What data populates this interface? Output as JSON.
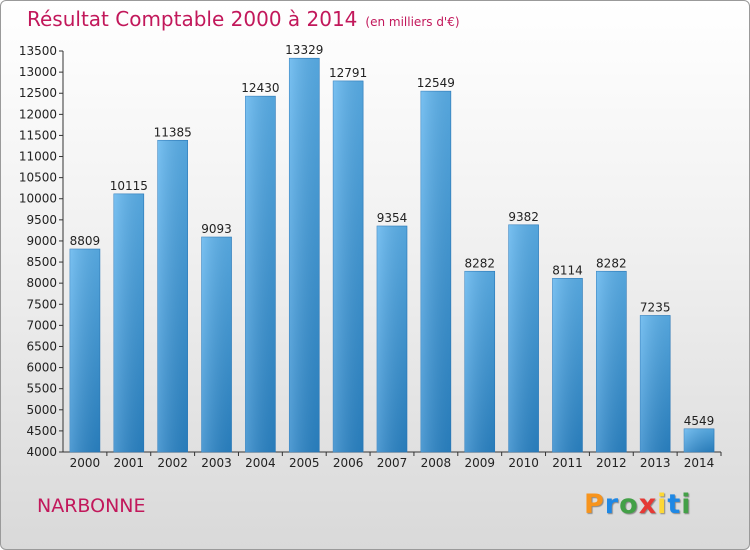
{
  "title": "Résultat Comptable 2000 à 2014",
  "subtitle": "(en milliers d'€)",
  "commune": "NARBONNE",
  "logo": {
    "letters": [
      "P",
      "r",
      "o",
      "x",
      "i",
      "t",
      "i"
    ],
    "colors": [
      "#f7941d",
      "#1e88e5",
      "#43a047",
      "#e53935",
      "#fdd835",
      "#1e88e5",
      "#43a047"
    ]
  },
  "colors": {
    "bar": "#3d9ee0",
    "title": "#c2185b"
  },
  "chart_data": {
    "type": "bar",
    "title": "Résultat Comptable 2000 à 2014",
    "subtitle": "(en milliers d'€)",
    "categories": [
      "2000",
      "2001",
      "2002",
      "2003",
      "2004",
      "2005",
      "2006",
      "2007",
      "2008",
      "2009",
      "2010",
      "2011",
      "2012",
      "2013",
      "2014"
    ],
    "values": [
      8809,
      10115,
      11385,
      9093,
      12430,
      13329,
      12791,
      9354,
      12549,
      8282,
      9382,
      8114,
      8282,
      7235,
      4549
    ],
    "value_labels": [
      "8809",
      "10115",
      "11385",
      "9093",
      "12430",
      "13329",
      "12791",
      "9354",
      "12549",
      "8282",
      "9382",
      "8114",
      "8282",
      "7235",
      "4549"
    ],
    "ylim": [
      4000,
      13500
    ],
    "yticks": [
      4000,
      4500,
      5000,
      5500,
      6000,
      6500,
      7000,
      7500,
      8000,
      8500,
      9000,
      9500,
      10000,
      10500,
      11000,
      11500,
      12000,
      12500,
      13000,
      13500
    ],
    "grid": false,
    "xlabel": "",
    "ylabel": ""
  }
}
